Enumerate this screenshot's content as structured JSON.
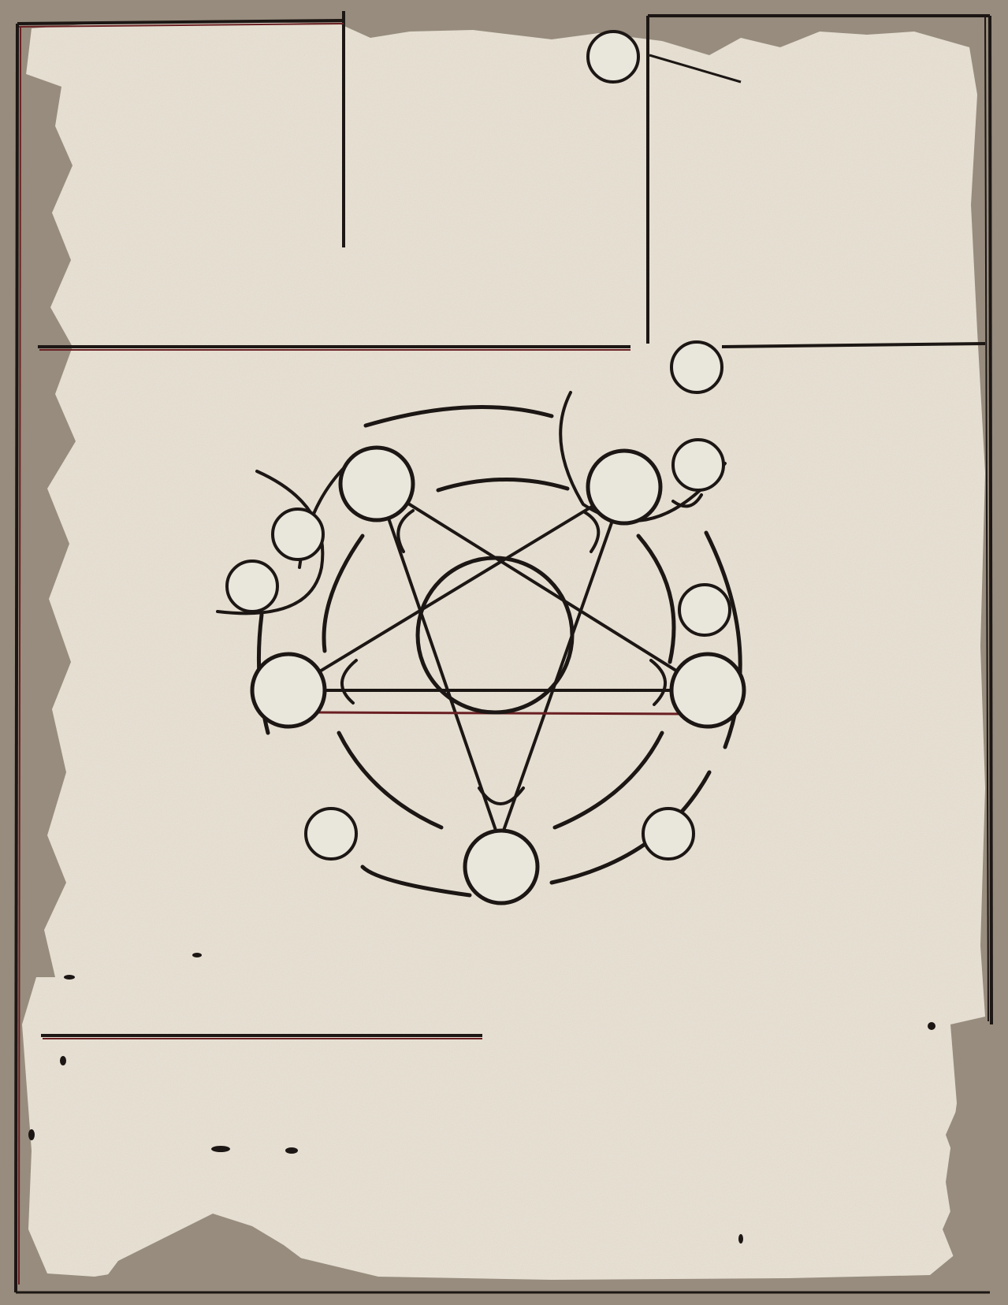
{
  "palette": {
    "outer_frame": "#978c7d",
    "parchment": "#e8e1d3",
    "parchment_shade": "#d9d0bf",
    "ink": "#1c1614",
    "ink_red": "#6a1f22",
    "node_fill": "#e9e6dc"
  },
  "panels": [
    {
      "name": "top-left-panel"
    },
    {
      "name": "top-middle-panel"
    },
    {
      "name": "top-right-panel"
    },
    {
      "name": "center-panel"
    },
    {
      "name": "bottom-panel"
    }
  ],
  "sigil": {
    "shape": "pentagram-in-circle",
    "outer_nodes": 5,
    "ring_nodes": 2,
    "crescents": 7
  }
}
